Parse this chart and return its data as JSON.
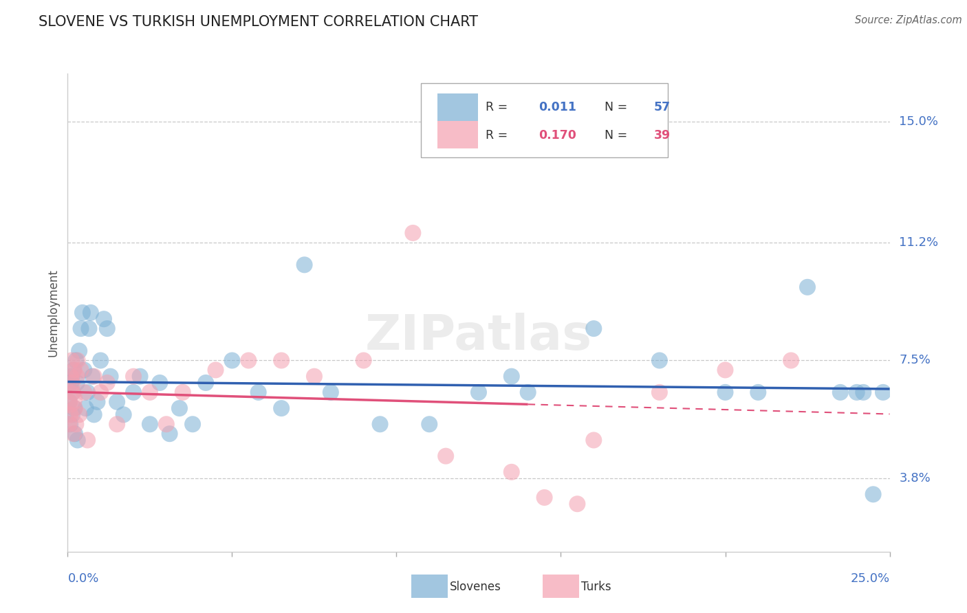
{
  "title": "SLOVENE VS TURKISH UNEMPLOYMENT CORRELATION CHART",
  "source": "Source: ZipAtlas.com",
  "ylabel": "Unemployment",
  "yticks": [
    3.8,
    7.5,
    11.2,
    15.0
  ],
  "xlim": [
    0.0,
    25.0
  ],
  "ylim": [
    1.5,
    16.5
  ],
  "blue_R": "0.011",
  "blue_N": "57",
  "pink_R": "0.170",
  "pink_N": "39",
  "blue_color": "#7bafd4",
  "pink_color": "#f4a0b0",
  "blue_line_color": "#3060b0",
  "pink_line_color": "#e0507a",
  "legend_label_blue": "Slovenes",
  "legend_label_pink": "Turks",
  "blue_x": [
    0.05,
    0.08,
    0.1,
    0.12,
    0.14,
    0.16,
    0.18,
    0.2,
    0.22,
    0.25,
    0.28,
    0.3,
    0.35,
    0.4,
    0.45,
    0.5,
    0.55,
    0.6,
    0.65,
    0.7,
    0.75,
    0.8,
    0.9,
    1.0,
    1.1,
    1.2,
    1.3,
    1.5,
    1.7,
    2.0,
    2.2,
    2.5,
    2.8,
    3.1,
    3.4,
    3.8,
    4.2,
    5.0,
    5.8,
    6.5,
    7.2,
    8.0,
    9.5,
    11.0,
    12.5,
    13.5,
    14.0,
    16.0,
    18.0,
    20.0,
    21.0,
    22.5,
    23.5,
    24.0,
    24.2,
    24.5,
    24.8
  ],
  "blue_y": [
    6.2,
    5.5,
    6.8,
    7.0,
    5.8,
    6.5,
    7.2,
    6.0,
    5.2,
    7.5,
    6.8,
    5.0,
    7.8,
    8.5,
    9.0,
    7.2,
    6.0,
    6.5,
    8.5,
    9.0,
    7.0,
    5.8,
    6.2,
    7.5,
    8.8,
    8.5,
    7.0,
    6.2,
    5.8,
    6.5,
    7.0,
    5.5,
    6.8,
    5.2,
    6.0,
    5.5,
    6.8,
    7.5,
    6.5,
    6.0,
    10.5,
    6.5,
    5.5,
    5.5,
    6.5,
    7.0,
    6.5,
    8.5,
    7.5,
    6.5,
    6.5,
    9.8,
    6.5,
    6.5,
    6.5,
    3.3,
    6.5
  ],
  "pink_x": [
    0.04,
    0.06,
    0.08,
    0.1,
    0.12,
    0.14,
    0.16,
    0.18,
    0.2,
    0.22,
    0.25,
    0.28,
    0.3,
    0.35,
    0.4,
    0.5,
    0.6,
    0.8,
    1.0,
    1.2,
    1.5,
    2.0,
    2.5,
    3.0,
    3.5,
    4.5,
    5.5,
    6.5,
    7.5,
    9.0,
    10.5,
    11.5,
    13.5,
    14.5,
    15.5,
    16.0,
    18.0,
    20.0,
    22.0
  ],
  "pink_y": [
    5.5,
    6.2,
    5.8,
    7.0,
    7.5,
    6.8,
    6.5,
    5.2,
    7.2,
    6.0,
    5.5,
    7.0,
    7.5,
    5.8,
    7.2,
    6.5,
    5.0,
    7.0,
    6.5,
    6.8,
    5.5,
    7.0,
    6.5,
    5.5,
    6.5,
    7.2,
    7.5,
    7.5,
    7.0,
    7.5,
    11.5,
    4.5,
    4.0,
    3.2,
    3.0,
    5.0,
    6.5,
    7.2,
    7.5
  ]
}
